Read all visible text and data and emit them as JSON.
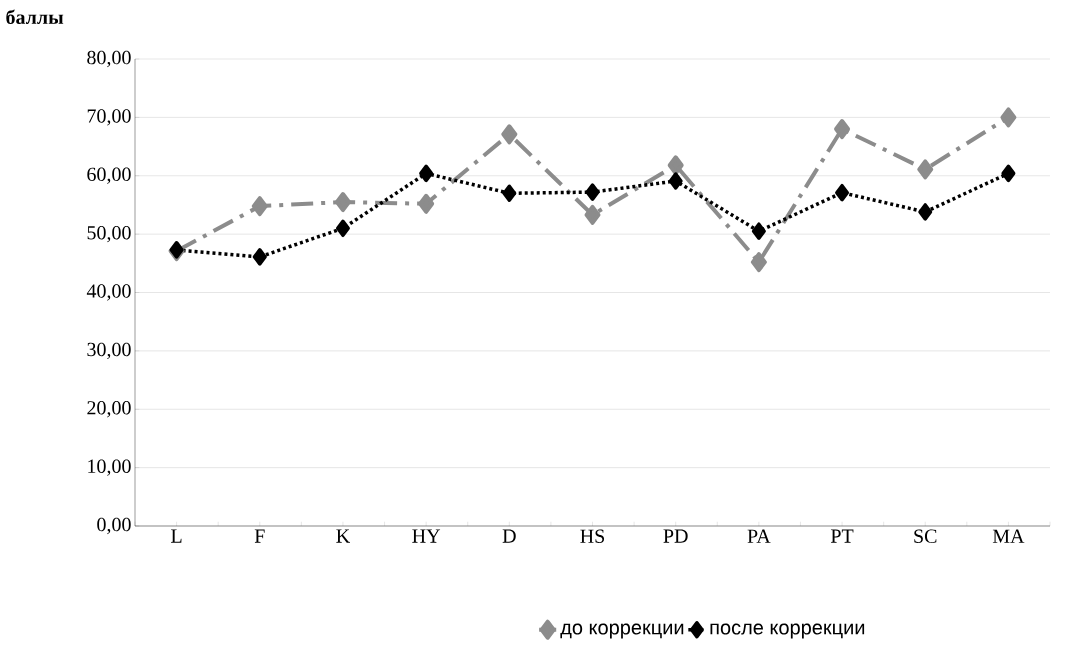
{
  "chart_data": {
    "type": "line",
    "ylabel": "баллы",
    "categories": [
      "L",
      "F",
      "K",
      "HY",
      "D",
      "HS",
      "PD",
      "PA",
      "PT",
      "SC",
      "MA"
    ],
    "series": [
      {
        "name": "до коррекции",
        "color": "#8c8c8c",
        "line_style": "dashed",
        "marker": "diamond",
        "values": [
          47.1,
          54.8,
          55.5,
          55.2,
          67.1,
          53.3,
          61.8,
          45.2,
          68.0,
          61.1,
          70.0
        ]
      },
      {
        "name": "после коррекции",
        "color": "#000000",
        "line_style": "dotted",
        "marker": "diamond",
        "values": [
          47.3,
          46.1,
          51.0,
          60.4,
          57.0,
          57.2,
          59.1,
          50.5,
          57.1,
          53.8,
          60.4
        ]
      }
    ],
    "ylim": [
      0,
      80
    ],
    "yticks": [
      {
        "value": 0,
        "label": "0,00"
      },
      {
        "value": 10,
        "label": "10,00"
      },
      {
        "value": 20,
        "label": "20,00"
      },
      {
        "value": 30,
        "label": "30,00"
      },
      {
        "value": 40,
        "label": "40,00"
      },
      {
        "value": 50,
        "label": "50,00"
      },
      {
        "value": 60,
        "label": "60,00"
      },
      {
        "value": 70,
        "label": "70,00"
      },
      {
        "value": 80,
        "label": "80,00"
      }
    ],
    "grid": "y",
    "legend": "bottom"
  }
}
